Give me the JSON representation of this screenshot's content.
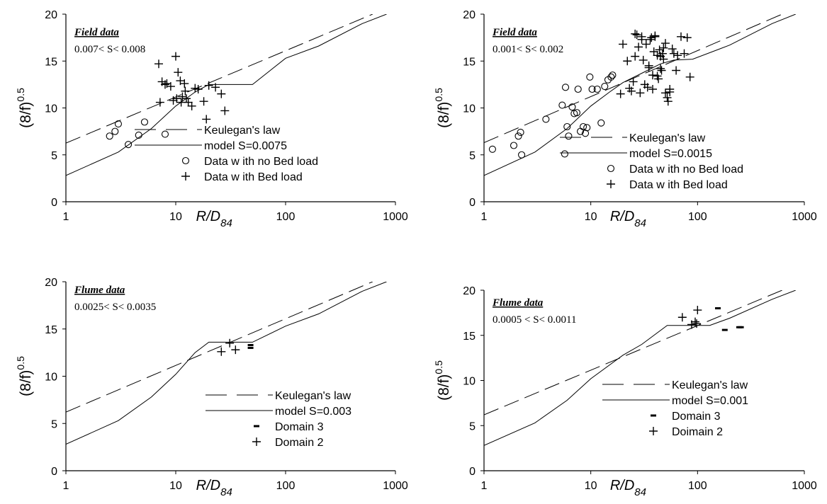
{
  "chart_data": [
    {
      "type": "scatter",
      "title": "",
      "xlabel_main": "R/D",
      "xlabel_sub": "84",
      "ylabel_main": "(8/f)",
      "ylabel_sup": "0.5",
      "x_scale": "log",
      "xlim": [
        1,
        1000
      ],
      "ylim": [
        0,
        20
      ],
      "x_ticks": [
        "1",
        "10",
        "100",
        "1000"
      ],
      "y_ticks": [
        "0",
        "5",
        "10",
        "15",
        "20"
      ],
      "annotation_title": "Field data",
      "annotation_text": "0.007< S< 0.008",
      "series": [
        {
          "name": "Keulegan's law",
          "kind": "line",
          "style": "dashed",
          "x": [
            1,
            620
          ],
          "y": [
            6.25,
            20.0
          ]
        },
        {
          "name": "model S=0.0075",
          "kind": "line",
          "style": "solid",
          "x": [
            1,
            3,
            6,
            10,
            15,
            20,
            30,
            50,
            100,
            200,
            500,
            830
          ],
          "y": [
            2.8,
            5.3,
            7.8,
            10.2,
            11.7,
            12.5,
            12.5,
            12.5,
            15.3,
            16.6,
            19.0,
            20.0
          ]
        },
        {
          "name": "Data w ith no Bed load",
          "kind": "marker",
          "marker": "circle",
          "x": [
            2.5,
            2.8,
            3.0,
            3.7,
            4.6,
            5.2,
            8.0
          ],
          "y": [
            7.0,
            7.5,
            8.3,
            6.1,
            7.1,
            8.5,
            7.2
          ]
        },
        {
          "name": "Data w ith Bed load",
          "kind": "marker",
          "marker": "plus",
          "x": [
            7,
            8,
            9,
            10,
            10.5,
            11,
            11.5,
            12,
            12.5,
            13,
            14,
            15,
            16,
            18,
            19,
            20,
            23,
            26,
            28,
            7.5,
            7.2,
            8.3,
            9.5,
            10.2,
            11.2,
            12.2
          ],
          "y": [
            14.7,
            12.5,
            12.3,
            15.5,
            13.8,
            12.9,
            11.2,
            12.6,
            11.0,
            10.6,
            10.2,
            12.1,
            12.0,
            10.7,
            8.8,
            12.4,
            12.2,
            11.5,
            9.7,
            12.8,
            10.6,
            12.6,
            10.8,
            11.0,
            10.6,
            11.8
          ]
        }
      ]
    },
    {
      "type": "scatter",
      "title": "",
      "xlabel_main": "R/D",
      "xlabel_sub": "84",
      "ylabel_main": "(8/f)",
      "ylabel_sup": "0.5",
      "x_scale": "log",
      "xlim": [
        1,
        1000
      ],
      "ylim": [
        0,
        20
      ],
      "x_ticks": [
        "1",
        "10",
        "100",
        "1000"
      ],
      "y_ticks": [
        "0",
        "5",
        "10",
        "15",
        "20"
      ],
      "annotation_title": "Field data",
      "annotation_text": "0.001< S< 0.002",
      "series": [
        {
          "name": "Keulegan's law",
          "kind": "line",
          "style": "dashed",
          "x": [
            1,
            620
          ],
          "y": [
            6.3,
            20.0
          ]
        },
        {
          "name": "model S=0.0015",
          "kind": "line",
          "style": "solid",
          "x": [
            1,
            3,
            6,
            10,
            15,
            20,
            30,
            45,
            60,
            90,
            200,
            500,
            830
          ],
          "y": [
            2.8,
            5.3,
            7.8,
            10.2,
            11.7,
            12.7,
            13.7,
            14.7,
            15.1,
            15.2,
            16.7,
            19.0,
            20.0
          ]
        },
        {
          "name": "Data w ith no Bed load",
          "kind": "marker",
          "marker": "circle",
          "x": [
            1.2,
            1.9,
            2.1,
            2.2,
            2.25,
            3.8,
            5.4,
            5.8,
            6.0,
            6.2,
            6.7,
            7.0,
            7.4,
            8.0,
            8.5,
            8.9,
            9.2,
            9.8,
            10.3,
            11.5,
            12.5,
            13.5,
            14.5,
            15.5,
            16.0,
            5.7,
            7.6
          ],
          "y": [
            5.6,
            6.0,
            7.0,
            7.4,
            5.0,
            8.8,
            10.3,
            12.2,
            8.0,
            7.0,
            10.1,
            9.4,
            9.5,
            7.5,
            8.0,
            7.3,
            7.9,
            13.3,
            12.0,
            12.0,
            8.4,
            12.3,
            13.0,
            13.3,
            13.5,
            5.1,
            12.0
          ]
        },
        {
          "name": "Data w ith Bed load",
          "kind": "marker",
          "marker": "plus",
          "x": [
            19,
            20,
            22,
            23,
            24,
            25,
            26,
            27,
            28,
            29,
            30,
            31,
            32,
            33,
            34,
            35,
            36,
            37,
            38,
            39,
            40,
            42,
            43,
            44,
            45,
            46,
            47,
            48,
            50,
            52,
            53,
            55,
            58,
            60,
            63,
            65,
            70,
            75,
            80,
            85,
            26,
            30,
            35,
            40,
            45,
            50,
            55,
            38,
            42,
            48
          ],
          "y": [
            11.5,
            16.8,
            15.0,
            12.1,
            11.8,
            12.8,
            15.5,
            17.8,
            16.5,
            11.6,
            17.6,
            15.1,
            12.5,
            16.8,
            12.2,
            14.3,
            17.3,
            17.5,
            13.5,
            16.0,
            17.7,
            15.6,
            13.1,
            16.2,
            15.5,
            14.0,
            15.8,
            16.4,
            11.6,
            11.1,
            10.7,
            12.0,
            16.3,
            15.8,
            14.0,
            15.6,
            17.6,
            15.8,
            17.5,
            13.3,
            17.9,
            17.3,
            14.5,
            17.6,
            14.2,
            16.9,
            11.7,
            12.0,
            13.4,
            15.2
          ]
        }
      ]
    },
    {
      "type": "scatter",
      "title": "",
      "xlabel_main": "R/D",
      "xlabel_sub": "84",
      "ylabel_main": "(8/f)",
      "ylabel_sup": "0.5",
      "x_scale": "log",
      "xlim": [
        1,
        1000
      ],
      "ylim": [
        0,
        20
      ],
      "x_ticks": [
        "1",
        "10",
        "100",
        "1000"
      ],
      "y_ticks": [
        "0",
        "5",
        "10",
        "15",
        "20"
      ],
      "annotation_title": "Flume data",
      "annotation_text": "0.0025< S< 0.0035",
      "series": [
        {
          "name": "Keulegan's law",
          "kind": "line",
          "style": "dashed",
          "x": [
            1,
            620
          ],
          "y": [
            6.2,
            20.0
          ]
        },
        {
          "name": "model S=0.003",
          "kind": "line",
          "style": "solid",
          "x": [
            1,
            3,
            6,
            10,
            15,
            20,
            30,
            50,
            100,
            200,
            500,
            830
          ],
          "y": [
            2.8,
            5.3,
            7.8,
            10.2,
            12.5,
            13.6,
            13.6,
            13.6,
            15.3,
            16.6,
            19.0,
            20.0
          ]
        },
        {
          "name": "Domain 3",
          "kind": "marker",
          "marker": "dash",
          "x": [
            48,
            48
          ],
          "y": [
            13.3,
            13.0
          ]
        },
        {
          "name": "Domain 2",
          "kind": "marker",
          "marker": "plus",
          "x": [
            26,
            31,
            35
          ],
          "y": [
            12.6,
            13.5,
            12.8
          ]
        }
      ]
    },
    {
      "type": "scatter",
      "title": "",
      "xlabel_main": "R/D",
      "xlabel_sub": "84",
      "ylabel_main": "(8/f)",
      "ylabel_sup": "0.5",
      "x_scale": "log",
      "xlim": [
        1,
        1000
      ],
      "ylim": [
        0,
        20
      ],
      "x_ticks": [
        "1",
        "10",
        "100",
        "1000"
      ],
      "y_ticks": [
        "0",
        "5",
        "10",
        "15",
        "20"
      ],
      "annotation_title": "Flume data",
      "annotation_text": "0.0005 < S< 0.0011",
      "series": [
        {
          "name": "Keulegan's law",
          "kind": "line",
          "style": "dashed",
          "x": [
            1,
            620
          ],
          "y": [
            6.2,
            20.0
          ]
        },
        {
          "name": "model S=0.001",
          "kind": "line",
          "style": "solid",
          "x": [
            1,
            3,
            6,
            10,
            20,
            30,
            52,
            100,
            130,
            200,
            500,
            830
          ],
          "y": [
            2.8,
            5.3,
            7.8,
            10.2,
            12.8,
            14.0,
            16.1,
            16.1,
            16.1,
            16.9,
            19.0,
            20.0
          ]
        },
        {
          "name": "Domain 3",
          "kind": "marker",
          "marker": "dash",
          "x": [
            155,
            180,
            245,
            255
          ],
          "y": [
            18.0,
            15.6,
            15.9,
            15.9
          ]
        },
        {
          "name": "Doimain 2",
          "kind": "marker",
          "marker": "plus",
          "x": [
            72,
            88,
            95,
            98,
            100
          ],
          "y": [
            17.0,
            16.2,
            16.5,
            16.3,
            17.8
          ]
        }
      ]
    }
  ]
}
